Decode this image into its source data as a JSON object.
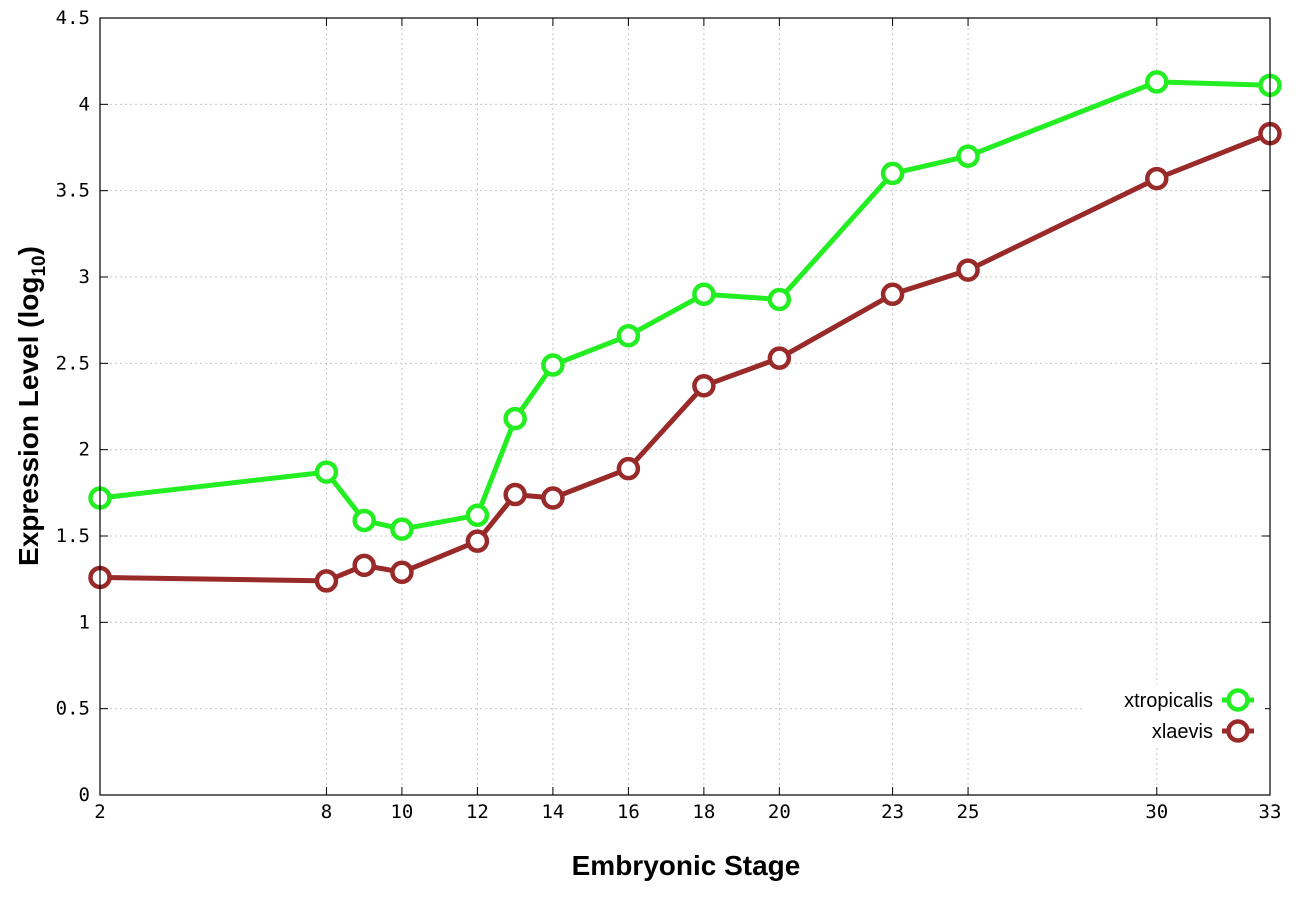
{
  "chart_data": {
    "type": "line",
    "xlabel": "Embryonic Stage",
    "ylabel_main": "Expression Level (log",
    "ylabel_sub": "10",
    "ylabel_close": ")",
    "xlim": [
      2,
      33
    ],
    "ylim": [
      0,
      4.5
    ],
    "grid": true,
    "legend_position": "bottom-right",
    "x_ticks": [
      {
        "value": 2,
        "label": "2"
      },
      {
        "value": 8,
        "label": "8"
      },
      {
        "value": 10,
        "label": "10"
      },
      {
        "value": 12,
        "label": "12"
      },
      {
        "value": 14,
        "label": "14"
      },
      {
        "value": 16,
        "label": "16"
      },
      {
        "value": 18,
        "label": "18"
      },
      {
        "value": 20,
        "label": "20"
      },
      {
        "value": 23,
        "label": "23"
      },
      {
        "value": 25,
        "label": "25"
      },
      {
        "value": 30,
        "label": "30"
      },
      {
        "value": 33,
        "label": "33"
      }
    ],
    "y_ticks": [
      {
        "value": 0,
        "label": "0"
      },
      {
        "value": 0.5,
        "label": "0.5"
      },
      {
        "value": 1,
        "label": "1"
      },
      {
        "value": 1.5,
        "label": "1.5"
      },
      {
        "value": 2,
        "label": "2"
      },
      {
        "value": 2.5,
        "label": "2.5"
      },
      {
        "value": 3,
        "label": "3"
      },
      {
        "value": 3.5,
        "label": "3.5"
      },
      {
        "value": 4,
        "label": "4"
      },
      {
        "value": 4.5,
        "label": "4.5"
      }
    ],
    "x": [
      2,
      8,
      9,
      10,
      12,
      13,
      14,
      16,
      18,
      20,
      23,
      25,
      30,
      33
    ],
    "series": [
      {
        "name": "xtropicalis",
        "color": "#22ee22",
        "values": [
          1.72,
          1.87,
          1.59,
          1.54,
          1.62,
          2.18,
          2.49,
          2.66,
          2.9,
          2.87,
          3.6,
          3.7,
          4.13,
          4.11
        ]
      },
      {
        "name": "xlaevis",
        "color": "#992a2a",
        "values": [
          1.26,
          1.24,
          1.33,
          1.29,
          1.47,
          1.74,
          1.72,
          1.89,
          2.37,
          2.53,
          2.9,
          3.04,
          3.57,
          3.83
        ]
      }
    ]
  }
}
